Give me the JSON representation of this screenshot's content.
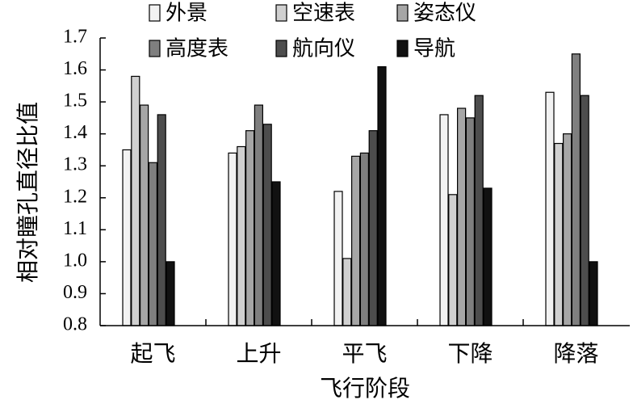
{
  "chart_data": {
    "type": "bar",
    "title": "",
    "xlabel": "飞行阶段",
    "ylabel": "相对瞳孔直径比值",
    "categories": [
      "起飞",
      "上升",
      "平飞",
      "下降",
      "降落"
    ],
    "ylim": [
      0.8,
      1.7
    ],
    "yticks": [
      "0.8",
      "0.9",
      "1.0",
      "1.1",
      "1.2",
      "1.3",
      "1.4",
      "1.5",
      "1.6",
      "1.7"
    ],
    "grid": false,
    "legend_position": "top",
    "series": [
      {
        "name": "外景",
        "color": "#f2f2f2",
        "values": [
          1.35,
          1.34,
          1.22,
          1.46,
          1.53
        ]
      },
      {
        "name": "空速表",
        "color": "#d0d0d0",
        "values": [
          1.58,
          1.36,
          1.01,
          1.21,
          1.37
        ]
      },
      {
        "name": "姿态仪",
        "color": "#a6a6a6",
        "values": [
          1.49,
          1.41,
          1.33,
          1.48,
          1.4
        ]
      },
      {
        "name": "高度表",
        "color": "#7f7f7f",
        "values": [
          1.31,
          1.49,
          1.34,
          1.45,
          1.65
        ]
      },
      {
        "name": "航向仪",
        "color": "#4d4d4d",
        "values": [
          1.46,
          1.43,
          1.41,
          1.52,
          1.52
        ]
      },
      {
        "name": "导航",
        "color": "#111111",
        "values": [
          1.0,
          1.25,
          1.61,
          1.23,
          1.0
        ]
      }
    ]
  }
}
